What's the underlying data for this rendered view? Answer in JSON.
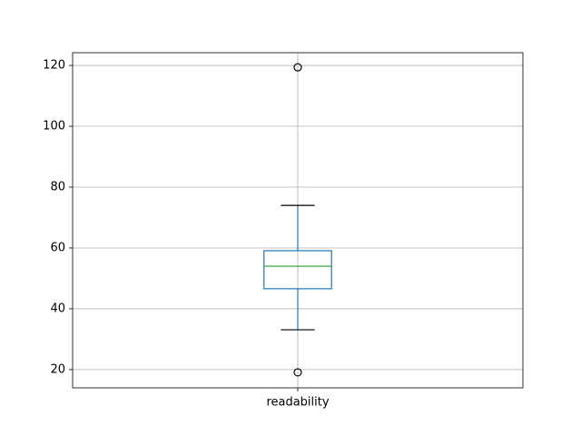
{
  "chart_data": {
    "type": "box",
    "categories": [
      "readability"
    ],
    "boxes": [
      {
        "whislo": 33.1,
        "q1": 46.6,
        "med": 54.0,
        "q3": 59.1,
        "whishi": 74.0,
        "fliers": [
          19.1,
          119.4
        ]
      }
    ],
    "box_color": "#1f77b4",
    "median_color": "#2ca02c",
    "cap_color": "#000000",
    "ylim": [
      14.0,
      124.2
    ],
    "yticks": [
      20,
      40,
      60,
      80,
      100,
      120
    ],
    "grid": true
  }
}
